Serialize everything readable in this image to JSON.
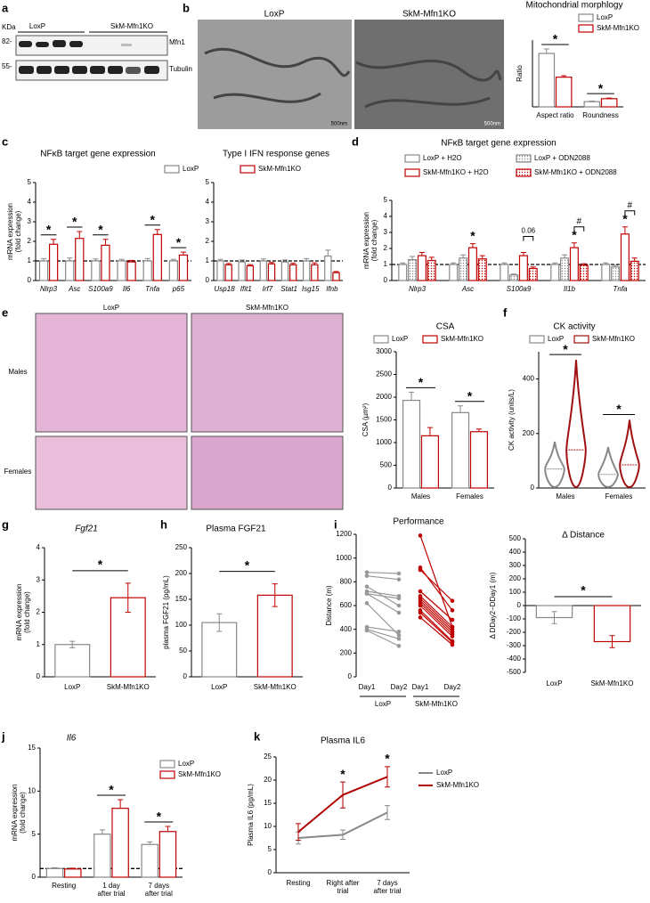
{
  "panel_labels": [
    "a",
    "b",
    "c",
    "d",
    "e",
    "f",
    "g",
    "h",
    "i",
    "j",
    "k"
  ],
  "blot": {
    "unit": "KDa",
    "groups": [
      "LoxP",
      "SkM-Mfn1KO"
    ],
    "markers": [
      "82-",
      "55-"
    ],
    "bands": [
      "Mfn1",
      "Tubulin"
    ]
  },
  "micrographs": {
    "labels": [
      "LoxP",
      "SkM-Mfn1KO"
    ],
    "scale": "500nm"
  },
  "histology": {
    "columns": [
      "LoxP",
      "SkM-Mfn1KO"
    ],
    "rows": [
      "Males",
      "Females"
    ]
  },
  "chart_data": [
    {
      "type": "bar",
      "title": "Mitochondrial morphlogy",
      "ylabel": "Ratio",
      "categories": [
        "Aspect ratio",
        "Roundness"
      ],
      "ylim": [
        0,
        4.5
      ],
      "series": [
        {
          "name": "LoxP",
          "color": "#888888",
          "values": [
            3.6,
            0.35
          ],
          "errors": [
            0.3,
            0.04
          ]
        },
        {
          "name": "SkM-Mfn1KO",
          "color": "#c00000",
          "values": [
            2.0,
            0.55
          ],
          "errors": [
            0.1,
            0.04
          ]
        }
      ],
      "significance": [
        "*",
        "*"
      ]
    },
    {
      "type": "bar",
      "title": "NFκB target gene expression",
      "ylabel": [
        "mRNA expression",
        "(fold change)"
      ],
      "categories": [
        "Nlrp3",
        "Asc",
        "S100a9",
        "Il6",
        "Tnfa",
        "p65"
      ],
      "ylim": [
        0,
        5
      ],
      "yticks": [
        0,
        1,
        2,
        3,
        4,
        5
      ],
      "reference_line": 1,
      "series": [
        {
          "name": "LoxP",
          "color": "#888888",
          "values": [
            1,
            1,
            1,
            1,
            1,
            1
          ],
          "errors": [
            0.12,
            0.15,
            0.1,
            0.08,
            0.12,
            0.08
          ]
        },
        {
          "name": "SkM-Mfn1KO",
          "color": "#c00000",
          "values": [
            1.85,
            2.15,
            1.8,
            0.95,
            2.35,
            1.3
          ],
          "errors": [
            0.25,
            0.35,
            0.3,
            0.08,
            0.25,
            0.15
          ]
        }
      ],
      "significance": [
        "*",
        "*",
        "*",
        null,
        "*",
        "*"
      ]
    },
    {
      "type": "bar",
      "title": "Type I IFN response genes",
      "categories": [
        "Usp18",
        "Ifit1",
        "Irf7",
        "Stat1",
        "Isg15",
        "Ifnb"
      ],
      "ylim": [
        0,
        5
      ],
      "yticks": [
        0,
        1,
        2,
        3,
        4,
        5
      ],
      "reference_line": 1,
      "series": [
        {
          "color": "#888888",
          "values": [
            1,
            0.95,
            1,
            0.95,
            1.0,
            1.25
          ],
          "errors": [
            0.08,
            0.1,
            0.1,
            0.1,
            0.12,
            0.3
          ]
        },
        {
          "color": "#c00000",
          "values": [
            0.8,
            0.75,
            0.85,
            0.8,
            0.8,
            0.4
          ],
          "errors": [
            0.07,
            0.06,
            0.07,
            0.08,
            0.1,
            0.06
          ]
        }
      ]
    },
    {
      "type": "bar",
      "title": "NFκB target gene expression",
      "ylabel": [
        "mRNA expression",
        "(fold change)"
      ],
      "categories": [
        "Nlrp3",
        "Asc",
        "S100a9",
        "Il1b",
        "Tnfa"
      ],
      "ylim": [
        0,
        5
      ],
      "yticks": [
        0,
        1,
        2,
        3,
        4,
        5
      ],
      "reference_line": 1,
      "series": [
        {
          "name": "LoxP + H2O",
          "color": "#888888",
          "values": [
            1,
            1,
            1,
            1,
            1
          ],
          "errors": [
            0.1,
            0.1,
            0.1,
            0.1,
            0.1
          ]
        },
        {
          "name": "LoxP + ODN2088",
          "color": "#888888",
          "pattern": "dots",
          "values": [
            1.3,
            1.4,
            0.35,
            1.4,
            0.85
          ],
          "errors": [
            0.2,
            0.2,
            0.05,
            0.2,
            0.1
          ]
        },
        {
          "name": "SkM-Mfn1KO + H2O",
          "color": "#c00000",
          "values": [
            1.55,
            2.05,
            1.55,
            2.05,
            2.9
          ],
          "errors": [
            0.2,
            0.25,
            0.2,
            0.3,
            0.45
          ]
        },
        {
          "name": "SkM-Mfn1KO + ODN2088",
          "color": "#c00000",
          "pattern": "dots",
          "values": [
            1.25,
            1.35,
            0.75,
            0.95,
            1.2
          ],
          "errors": [
            0.2,
            0.2,
            0.1,
            0.1,
            0.2
          ]
        }
      ],
      "significance": [
        null,
        "*",
        null,
        "*",
        "*"
      ],
      "comparison": [
        null,
        null,
        "0.06",
        "#",
        "#"
      ]
    },
    {
      "type": "bar",
      "title": "CSA",
      "ylabel": "CSA (µm²)",
      "categories": [
        "Males",
        "Females"
      ],
      "ylim": [
        0,
        3000
      ],
      "yticks": [
        0,
        500,
        1000,
        1500,
        2000,
        2500,
        3000
      ],
      "series": [
        {
          "name": "LoxP",
          "color": "#888888",
          "values": [
            1930,
            1660
          ],
          "errors": [
            180,
            150
          ]
        },
        {
          "name": "SkM-Mfn1KO",
          "color": "#c00000",
          "values": [
            1150,
            1240
          ],
          "errors": [
            180,
            60
          ]
        }
      ],
      "significance": [
        "*",
        "*"
      ]
    },
    {
      "type": "violin",
      "title": "CK activity",
      "ylabel": "CK activity (units/L)",
      "categories": [
        "Males",
        "Females"
      ],
      "ylim": [
        0,
        500
      ],
      "yticks": [
        0,
        200,
        400
      ],
      "series": [
        {
          "name": "LoxP",
          "color": "#888888",
          "medians": [
            70,
            50
          ],
          "maxima": [
            170,
            150
          ]
        },
        {
          "name": "SkM-Mfn1KO",
          "color": "#a01010",
          "medians": [
            140,
            85
          ],
          "maxima": [
            470,
            250
          ]
        }
      ],
      "significance": [
        "*",
        "*"
      ]
    },
    {
      "type": "single-bar",
      "title": "Fgf21",
      "ylabel": [
        "mRNA expression",
        "(fold change)"
      ],
      "categories": [
        "LoxP",
        "SkM-Mfn1KO"
      ],
      "colors": [
        "#888888",
        "#c00000"
      ],
      "values": [
        1.0,
        2.45
      ],
      "errors": [
        0.1,
        0.45
      ],
      "ylim": [
        0,
        4
      ],
      "yticks": [
        0,
        1,
        2,
        3,
        4
      ],
      "significance": "*"
    },
    {
      "type": "single-bar",
      "title": "Plasma FGF21",
      "ylabel": "plasma FGF21 (pg/mL)",
      "categories": [
        "LoxP",
        "SkM-Mfn1KO"
      ],
      "colors": [
        "#888888",
        "#c00000"
      ],
      "values": [
        105,
        158
      ],
      "errors": [
        17,
        22
      ],
      "ylim": [
        0,
        250
      ],
      "yticks": [
        0,
        50,
        100,
        150,
        200,
        250
      ],
      "significance": "*"
    },
    {
      "type": "paired",
      "title": "Performance",
      "ylabel": "Distance (m)",
      "categories": [
        "Day1",
        "Day2"
      ],
      "ylim": [
        0,
        1200
      ],
      "yticks": [
        0,
        200,
        400,
        600,
        800,
        1000,
        1200
      ],
      "series": [
        {
          "name": "LoxP",
          "color": "#999999",
          "day1": [
            880,
            850,
            760,
            720,
            700,
            700,
            620,
            420,
            400,
            390
          ],
          "day2": [
            870,
            820,
            600,
            680,
            660,
            540,
            350,
            380,
            320,
            260
          ]
        },
        {
          "name": "SkM-Mfn1KO",
          "color": "#c00000",
          "day1": [
            1190,
            920,
            900,
            720,
            680,
            660,
            640,
            620,
            600,
            560,
            540,
            500
          ],
          "day2": [
            420,
            560,
            640,
            480,
            420,
            400,
            380,
            360,
            340,
            300,
            290,
            270
          ]
        }
      ]
    },
    {
      "type": "single-bar",
      "title": "Δ Distance",
      "ylabel": "Δ DDay2−DDay1 (m)",
      "categories": [
        "LoxP",
        "SkM-Mfn1KO"
      ],
      "colors": [
        "#888888",
        "#c00000"
      ],
      "values": [
        -90,
        -270
      ],
      "errors": [
        45,
        45
      ],
      "ylim": [
        -500,
        500
      ],
      "yticks": [
        -500,
        -400,
        -300,
        -200,
        -100,
        0,
        100,
        200,
        300,
        400,
        500
      ],
      "significance": "*"
    },
    {
      "type": "bar",
      "title": "Il6",
      "ylabel": [
        "mRNA expression",
        "(fold change)"
      ],
      "categories": [
        [
          "Resting"
        ],
        [
          "1 day",
          "after trial"
        ],
        [
          "7 days",
          "after trial"
        ]
      ],
      "ylim": [
        0,
        15
      ],
      "yticks": [
        0,
        5,
        10,
        15
      ],
      "reference_line": 1,
      "series": [
        {
          "name": "LoxP",
          "color": "#888888",
          "values": [
            1.0,
            5.0,
            3.8
          ],
          "errors": [
            0.1,
            0.5,
            0.3
          ]
        },
        {
          "name": "SkM-Mfn1KO",
          "color": "#c00000",
          "values": [
            0.95,
            8.0,
            5.3
          ],
          "errors": [
            0.1,
            1.0,
            0.6
          ]
        }
      ],
      "significance": [
        null,
        "*",
        "*"
      ]
    },
    {
      "type": "line",
      "title": "Plasma IL6",
      "ylabel": "Plasma IL6 (pg/mL)",
      "categories": [
        [
          "Resting"
        ],
        [
          "Right after",
          "trial"
        ],
        [
          "7 days",
          "after trial"
        ]
      ],
      "ylim": [
        0,
        25
      ],
      "yticks": [
        0,
        5,
        10,
        15,
        20,
        25
      ],
      "series": [
        {
          "name": "LoxP",
          "color": "#888888",
          "values": [
            7.5,
            8.2,
            13.0
          ],
          "errors": [
            1.3,
            1.0,
            1.5
          ]
        },
        {
          "name": "SkM-Mfn1KO",
          "color": "#b00000",
          "values": [
            8.8,
            16.8,
            20.7
          ],
          "errors": [
            1.8,
            2.8,
            2.2
          ]
        }
      ],
      "significance": [
        null,
        "*",
        "*"
      ]
    }
  ]
}
